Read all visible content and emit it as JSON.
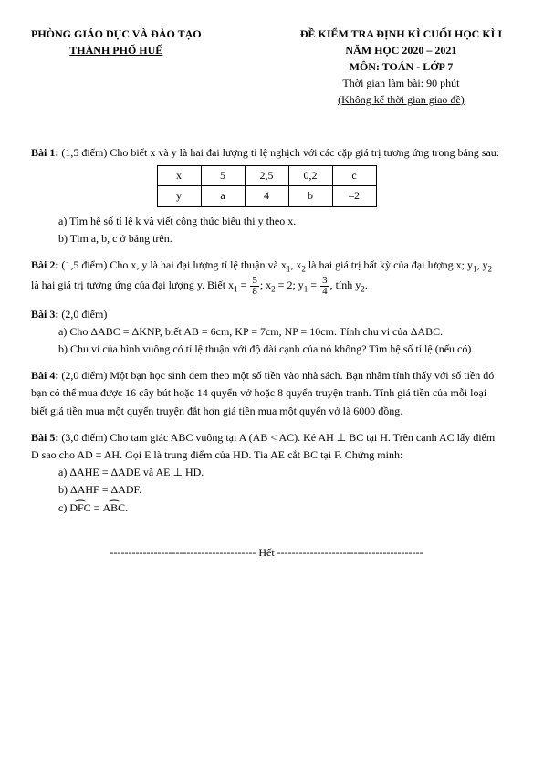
{
  "header": {
    "left_line1": "PHÒNG GIÁO DỤC VÀ ĐÀO TẠO",
    "left_line2": "THÀNH PHỐ HUẾ",
    "right_line1": "ĐỀ KIỂM TRA ĐỊNH KÌ CUỐI HỌC KÌ I",
    "right_line2": "NĂM HỌC 2020 – 2021",
    "right_line3": "MÔN: TOÁN - LỚP 7",
    "right_line4": "Thời gian làm bài: 90 phút",
    "right_line5": "(Không kể thời gian giao đề)"
  },
  "bai1": {
    "title": "Bài 1:",
    "points": "(1,5 điểm)",
    "text": "Cho biết x và y là hai đại lượng tỉ lệ nghịch với các cặp giá trị tương ứng trong bảng sau:",
    "table": {
      "row1": [
        "x",
        "5",
        "2,5",
        "0,2",
        "c"
      ],
      "row2": [
        "y",
        "a",
        "4",
        "b",
        "–2"
      ]
    },
    "a": "a) Tìm hệ số tỉ lệ k và viết công thức biểu thị y theo x.",
    "b": "b) Tìm a, b, c ở bảng trên."
  },
  "bai2": {
    "title": "Bài 2:",
    "points": "(1,5 điểm)",
    "text_pre": "Cho x, y là hai đại lượng tỉ lệ thuận và x",
    "text_mid1": ", x",
    "text_mid2": " là hai giá trị bất kỳ của đại lượng x; y",
    "text_mid3": ", y",
    "text_mid4": " là hai giá trị tương ứng của đại lượng y. Biết x",
    "eq1": " = ",
    "eq2": "; x",
    "eq3": " = 2; y",
    "eq4": " = ",
    "text_end": ",  tính y",
    "text_end2": ".",
    "frac1_num": "5",
    "frac1_den": "8",
    "frac2_num": "3",
    "frac2_den": "4"
  },
  "bai3": {
    "title": "Bài 3:",
    "points": "(2,0 điểm)",
    "a": "a)  Cho ΔABC = ΔKNP, biết AB = 6cm, KP = 7cm, NP = 10cm. Tính chu vi của ΔABC.",
    "b": "b)  Chu vi của hình vuông có tỉ lệ thuận với độ dài cạnh của nó không? Tìm hệ số tỉ lệ (nếu có)."
  },
  "bai4": {
    "title": "Bài 4:",
    "points": "(2,0 điểm)",
    "text": "Một bạn học sinh đem theo một số tiền vào nhà sách. Bạn nhẩm tính thấy với số tiền đó bạn có thể mua được 16 cây bút hoặc 14 quyển vở hoặc 8 quyển truyện tranh. Tính giá tiền của mỗi loại biết giá tiền mua một quyển truyện đắt hơn giá tiền mua một quyển vở là 6000 đồng."
  },
  "bai5": {
    "title": "Bài 5:",
    "points": "(3,0 điểm)",
    "text": "Cho tam giác ABC vuông tại A (AB < AC). Kẻ AH ⊥ BC tại H. Trên cạnh AC lấy điểm D sao cho AD = AH. Gọi E là trung điểm của HD. Tia AE cắt BC tại F. Chứng minh:",
    "a": "a)  ΔAHE = ΔADE và AE ⊥ HD.",
    "b": "b)  ΔAHF = ΔADF.",
    "c_pre": "c)  ",
    "c_dfc": "DFC",
    "c_eq": " = ",
    "c_abc": "ABC",
    "c_end": "."
  },
  "footer": "---------------------------------------- Hết ----------------------------------------"
}
